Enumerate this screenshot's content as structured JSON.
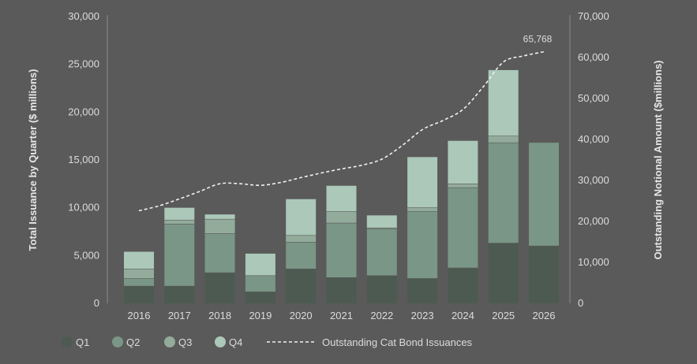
{
  "chart_data": {
    "type": "bar",
    "stacked": true,
    "categories": [
      "2016",
      "2017",
      "2018",
      "2019",
      "2020",
      "2021",
      "2022",
      "2023",
      "2024",
      "2025",
      "2026"
    ],
    "series": [
      {
        "name": "Q1",
        "color": "#4c5a52",
        "values": [
          1800,
          1800,
          3200,
          1200,
          3600,
          2700,
          2900,
          2600,
          3700,
          6300,
          6000
        ]
      },
      {
        "name": "Q2",
        "color": "#7a9686",
        "values": [
          800,
          6500,
          4100,
          1700,
          2800,
          5700,
          4900,
          7000,
          8400,
          10500,
          10800
        ]
      },
      {
        "name": "Q3",
        "color": "#93ab9b",
        "values": [
          1000,
          400,
          1500,
          0,
          700,
          1200,
          100,
          400,
          400,
          700,
          0
        ]
      },
      {
        "name": "Q4",
        "color": "#abc8b9",
        "values": [
          1800,
          1300,
          500,
          2300,
          3800,
          2700,
          1300,
          5300,
          4500,
          6900,
          0
        ]
      }
    ],
    "line_series": {
      "name": "Outstanding Cat Bond Issuances",
      "color": "#f2f2f2",
      "axis": "right",
      "x": [
        2016,
        2016.5,
        2017,
        2017.5,
        2018,
        2018.5,
        2019,
        2019.5,
        2020,
        2020.5,
        2021,
        2021.5,
        2022,
        2022.5,
        2023,
        2023.5,
        2024,
        2024.5,
        2025,
        2025.5,
        2026
      ],
      "values": [
        22600,
        23800,
        25500,
        27300,
        29200,
        29200,
        28800,
        29500,
        30700,
        31800,
        32800,
        33700,
        35200,
        38500,
        42400,
        44600,
        47300,
        52800,
        58900,
        60400,
        61400
      ]
    },
    "annotation": {
      "label": "65,768"
    },
    "y_left": {
      "label": "Total Issuance by Quarter ($ millions)",
      "ylim": [
        0,
        30000
      ],
      "ticks": [
        0,
        5000,
        10000,
        15000,
        20000,
        25000,
        30000
      ],
      "tick_labels": [
        "0",
        "5,000",
        "10,000",
        "15,000",
        "20,000",
        "25,000",
        "30,000"
      ]
    },
    "y_right": {
      "label": "Outstanding Notional Amount ($millions)",
      "ylim": [
        0,
        70000
      ],
      "ticks": [
        0,
        10000,
        20000,
        30000,
        40000,
        50000,
        60000,
        70000
      ],
      "tick_labels": [
        "0",
        "10,000",
        "20,000",
        "30,000",
        "40,000",
        "50,000",
        "60,000",
        "70,000"
      ]
    },
    "grid": false,
    "legend": {
      "position": "bottom-left",
      "items": [
        {
          "label": "Q1",
          "type": "marker",
          "color": "#4c5a52"
        },
        {
          "label": "Q2",
          "type": "marker",
          "color": "#7a9686"
        },
        {
          "label": "Q3",
          "type": "marker",
          "color": "#93ab9b"
        },
        {
          "label": "Q4",
          "type": "marker",
          "color": "#abc8b9"
        },
        {
          "label": "Outstanding Cat Bond Issuances",
          "type": "dashed-line",
          "color": "#f2f2f2"
        }
      ]
    }
  }
}
